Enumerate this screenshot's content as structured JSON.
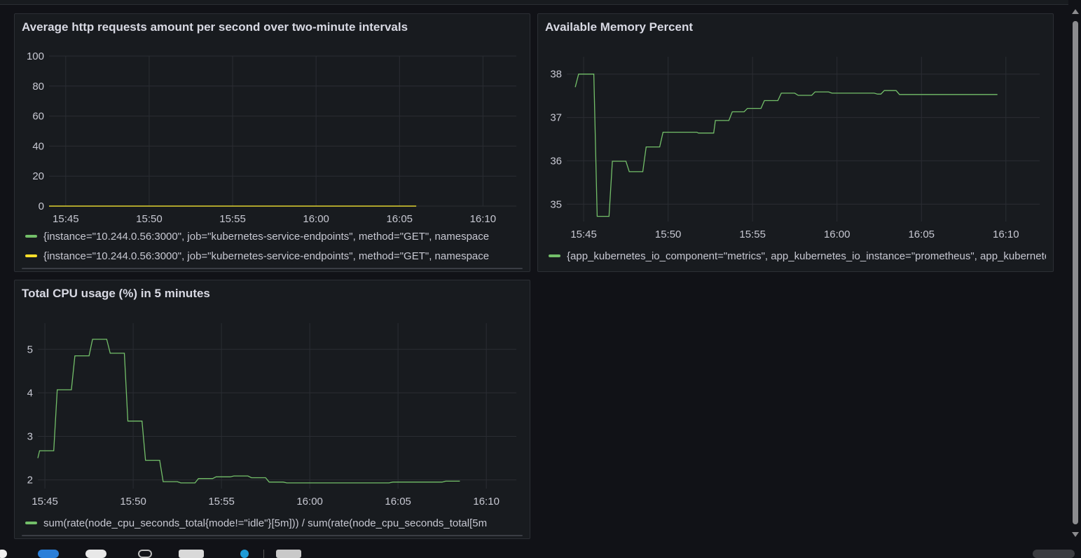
{
  "colors": {
    "background": "#111217",
    "panel": "#181b1f",
    "grid": "#2a2d33",
    "green": "#73bf69",
    "yellow": "#fade2a"
  },
  "panels": {
    "http": {
      "title": "Average http requests amount per second over two-minute intervals",
      "legend": [
        {
          "label": "{instance=\"10.244.0.56:3000\", job=\"kubernetes-service-endpoints\", method=\"GET\", namespace",
          "color_key": "green"
        },
        {
          "label": "{instance=\"10.244.0.56:3000\", job=\"kubernetes-service-endpoints\", method=\"GET\", namespace",
          "color_key": "yellow"
        }
      ]
    },
    "memory": {
      "title": "Available Memory Percent",
      "legend": [
        {
          "label": "{app_kubernetes_io_component=\"metrics\", app_kubernetes_io_instance=\"prometheus\", app_kubernetes",
          "color_key": "green"
        }
      ]
    },
    "cpu": {
      "title": "Total CPU usage (%) in 5 minutes",
      "legend": [
        {
          "label": "sum(rate(node_cpu_seconds_total{mode!=\"idle\"}[5m])) / sum(rate(node_cpu_seconds_total[5m",
          "color_key": "green"
        }
      ]
    }
  },
  "chart_data": [
    {
      "type": "line",
      "title": "Average http requests amount per second over two-minute intervals",
      "x_unit": "HH:MM",
      "xlim": [
        "15:44",
        "16:12"
      ],
      "xticks": [
        "15:45",
        "15:50",
        "15:55",
        "16:00",
        "16:05",
        "16:10"
      ],
      "ylim": [
        0,
        100
      ],
      "yticks": [
        0,
        20,
        40,
        60,
        80,
        100
      ],
      "grid": true,
      "legend_position": "bottom",
      "series": [
        {
          "color": "#73bf69",
          "points": [
            [
              "15:44",
              0
            ],
            [
              "16:06",
              0
            ]
          ]
        },
        {
          "color": "#fade2a",
          "points": [
            [
              "15:44",
              0
            ],
            [
              "16:06",
              0
            ]
          ]
        }
      ]
    },
    {
      "type": "line",
      "title": "Available Memory Percent",
      "xlim": [
        "15:44",
        "16:12"
      ],
      "xticks": [
        "15:45",
        "15:50",
        "15:55",
        "16:00",
        "16:05",
        "16:10"
      ],
      "ylim": [
        34.6,
        38.4
      ],
      "yticks": [
        35,
        36,
        37,
        38
      ],
      "grid": true,
      "legend_position": "bottom",
      "series": [
        {
          "color": "#73bf69",
          "points": [
            [
              "15:44.5",
              37.7
            ],
            [
              "15:44.7",
              38.0
            ],
            [
              "15:45.5",
              38.0
            ],
            [
              "15:45.6",
              38.0
            ],
            [
              "15:45.8",
              34.72
            ],
            [
              "15:46.5",
              34.72
            ],
            [
              "15:46.7",
              35.99
            ],
            [
              "15:47.5",
              35.99
            ],
            [
              "15:47.7",
              35.75
            ],
            [
              "15:48.5",
              35.75
            ],
            [
              "15:48.7",
              36.32
            ],
            [
              "15:49.5",
              36.32
            ],
            [
              "15:49.7",
              36.66
            ],
            [
              "15:51.7",
              36.66
            ],
            [
              "15:51.8",
              36.64
            ],
            [
              "15:52.7",
              36.64
            ],
            [
              "15:52.8",
              36.93
            ],
            [
              "15:53.6",
              36.93
            ],
            [
              "15:53.8",
              37.13
            ],
            [
              "15:54.5",
              37.13
            ],
            [
              "15:54.7",
              37.21
            ],
            [
              "15:55.5",
              37.21
            ],
            [
              "15:55.7",
              37.39
            ],
            [
              "15:56.5",
              37.39
            ],
            [
              "15:56.7",
              37.56
            ],
            [
              "15:57.5",
              37.56
            ],
            [
              "15:57.7",
              37.51
            ],
            [
              "15:58.5",
              37.51
            ],
            [
              "15:58.7",
              37.59
            ],
            [
              "15:59.5",
              37.59
            ],
            [
              "15:59.7",
              37.56
            ],
            [
              "16:02.2",
              37.56
            ],
            [
              "16:02.4",
              37.54
            ],
            [
              "16:02.6",
              37.54
            ],
            [
              "16:02.8",
              37.62
            ],
            [
              "16:03.5",
              37.62
            ],
            [
              "16:03.7",
              37.53
            ],
            [
              "16:09.5",
              37.53
            ]
          ]
        }
      ]
    },
    {
      "type": "line",
      "title": "Total CPU usage (%) in 5 minutes",
      "xlim": [
        "15:44.6",
        "16:11.7"
      ],
      "xticks": [
        "15:45",
        "15:50",
        "15:55",
        "16:00",
        "16:05",
        "16:10"
      ],
      "ylim": [
        1.8,
        5.6
      ],
      "yticks": [
        2,
        3,
        4,
        5
      ],
      "grid": true,
      "legend_position": "bottom",
      "series": [
        {
          "color": "#73bf69",
          "points": [
            [
              "15:44.6",
              2.5
            ],
            [
              "15:44.7",
              2.67
            ],
            [
              "15:45.5",
              2.67
            ],
            [
              "15:45.7",
              4.07
            ],
            [
              "15:46.5",
              4.07
            ],
            [
              "15:46.7",
              4.85
            ],
            [
              "15:47.5",
              4.85
            ],
            [
              "15:47.7",
              5.23
            ],
            [
              "15:48.5",
              5.23
            ],
            [
              "15:48.7",
              4.91
            ],
            [
              "15:49.5",
              4.91
            ],
            [
              "15:49.7",
              3.35
            ],
            [
              "15:50.5",
              3.35
            ],
            [
              "15:50.7",
              2.45
            ],
            [
              "15:51.5",
              2.45
            ],
            [
              "15:51.7",
              1.96
            ],
            [
              "15:52.5",
              1.96
            ],
            [
              "15:52.7",
              1.93
            ],
            [
              "15:53.5",
              1.93
            ],
            [
              "15:53.7",
              2.03
            ],
            [
              "15:54.5",
              2.03
            ],
            [
              "15:54.7",
              2.07
            ],
            [
              "15:55.5",
              2.07
            ],
            [
              "15:55.7",
              2.09
            ],
            [
              "15:56.5",
              2.09
            ],
            [
              "15:56.7",
              2.05
            ],
            [
              "15:57.5",
              2.05
            ],
            [
              "15:57.7",
              1.95
            ],
            [
              "15:58.5",
              1.95
            ],
            [
              "15:58.7",
              1.93
            ],
            [
              "16:04.5",
              1.93
            ],
            [
              "16:04.7",
              1.95
            ],
            [
              "16:07.5",
              1.95
            ],
            [
              "16:07.7",
              1.97
            ],
            [
              "16:08.5",
              1.97
            ]
          ]
        }
      ]
    }
  ]
}
